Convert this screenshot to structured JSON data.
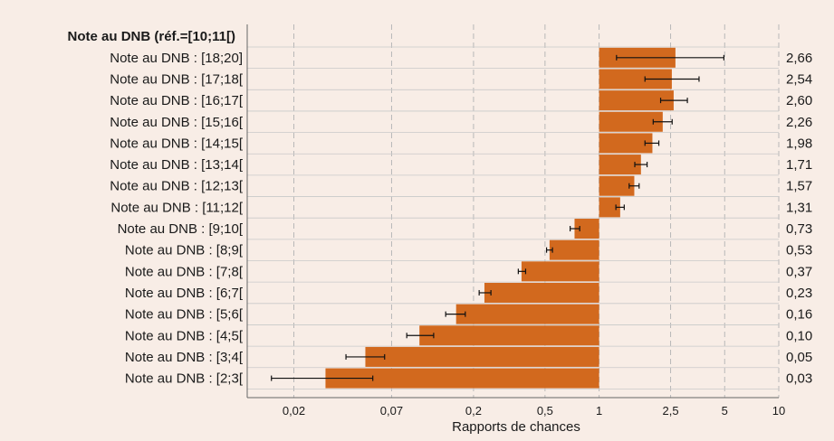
{
  "chart_data": {
    "type": "bar",
    "orientation": "horizontal",
    "scale": "log",
    "reference_value": 1,
    "header": "Note au DNB (réf.=[10;11[)",
    "xlabel": "Rapports de chances",
    "xlim": [
      0.011,
      10
    ],
    "ticks": [
      {
        "value": 0.02,
        "label": "0,02"
      },
      {
        "value": 0.07,
        "label": "0,07"
      },
      {
        "value": 0.2,
        "label": "0,2"
      },
      {
        "value": 0.5,
        "label": "0,5"
      },
      {
        "value": 1,
        "label": "1"
      },
      {
        "value": 2.5,
        "label": "2,5"
      },
      {
        "value": 5,
        "label": "5"
      },
      {
        "value": 10,
        "label": "10"
      }
    ],
    "grid": true,
    "bar_color": "#d2691e",
    "categories": [
      {
        "label": "Note au DNB : [18;20]",
        "value": 2.66,
        "value_label": "2,66",
        "ci": [
          1.25,
          4.95
        ]
      },
      {
        "label": "Note au DNB : [17;18[",
        "value": 2.54,
        "value_label": "2,54",
        "ci": [
          1.8,
          3.6
        ]
      },
      {
        "label": "Note au DNB : [16;17[",
        "value": 2.6,
        "value_label": "2,60",
        "ci": [
          2.2,
          3.1
        ]
      },
      {
        "label": "Note au DNB : [15;16[",
        "value": 2.26,
        "value_label": "2,26",
        "ci": [
          2.0,
          2.55
        ]
      },
      {
        "label": "Note au DNB : [14;15[",
        "value": 1.98,
        "value_label": "1,98",
        "ci": [
          1.8,
          2.15
        ]
      },
      {
        "label": "Note au DNB : [13;14[",
        "value": 1.71,
        "value_label": "1,71",
        "ci": [
          1.58,
          1.85
        ]
      },
      {
        "label": "Note au DNB : [12;13[",
        "value": 1.57,
        "value_label": "1,57",
        "ci": [
          1.47,
          1.67
        ]
      },
      {
        "label": "Note au DNB : [11;12[",
        "value": 1.31,
        "value_label": "1,31",
        "ci": [
          1.24,
          1.38
        ]
      },
      {
        "label": "Note au DNB : [9;10[",
        "value": 0.73,
        "value_label": "0,73",
        "ci": [
          0.69,
          0.78
        ]
      },
      {
        "label": "Note au DNB : [8;9[",
        "value": 0.53,
        "value_label": "0,53",
        "ci": [
          0.51,
          0.55
        ]
      },
      {
        "label": "Note au DNB : [7;8[",
        "value": 0.37,
        "value_label": "0,37",
        "ci": [
          0.355,
          0.39
        ]
      },
      {
        "label": "Note au DNB : [6;7[",
        "value": 0.23,
        "value_label": "0,23",
        "ci": [
          0.215,
          0.25
        ]
      },
      {
        "label": "Note au DNB : [5;6[",
        "value": 0.16,
        "value_label": "0,16",
        "ci": [
          0.14,
          0.18
        ]
      },
      {
        "label": "Note au DNB : [4;5[",
        "value": 0.1,
        "value_label": "0,10",
        "ci": [
          0.085,
          0.12
        ]
      },
      {
        "label": "Note au DNB : [3;4[",
        "value": 0.05,
        "value_label": "0,05",
        "ci": [
          0.039,
          0.064
        ]
      },
      {
        "label": "Note au DNB : [2;3[",
        "value": 0.03,
        "value_label": "0,03",
        "ci": [
          0.015,
          0.055
        ]
      }
    ]
  }
}
